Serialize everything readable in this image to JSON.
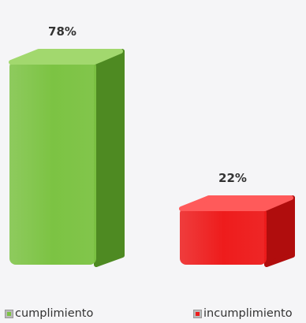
{
  "chart_data": {
    "type": "bar",
    "categories": [
      "cumplimiento",
      "incumplimiento"
    ],
    "values": [
      78,
      22
    ],
    "data_labels": [
      "78%",
      "22%"
    ],
    "ylim": [
      0,
      100
    ],
    "grid": false,
    "legend_position": "bottom",
    "colors": {
      "cumplimiento": {
        "front": "#7cc343",
        "side": "#4e8a22",
        "top": "#a2d86e"
      },
      "incumplimiento": {
        "front": "#ee1c1c",
        "side": "#b00d0d",
        "top": "#ff5a5a"
      }
    }
  }
}
